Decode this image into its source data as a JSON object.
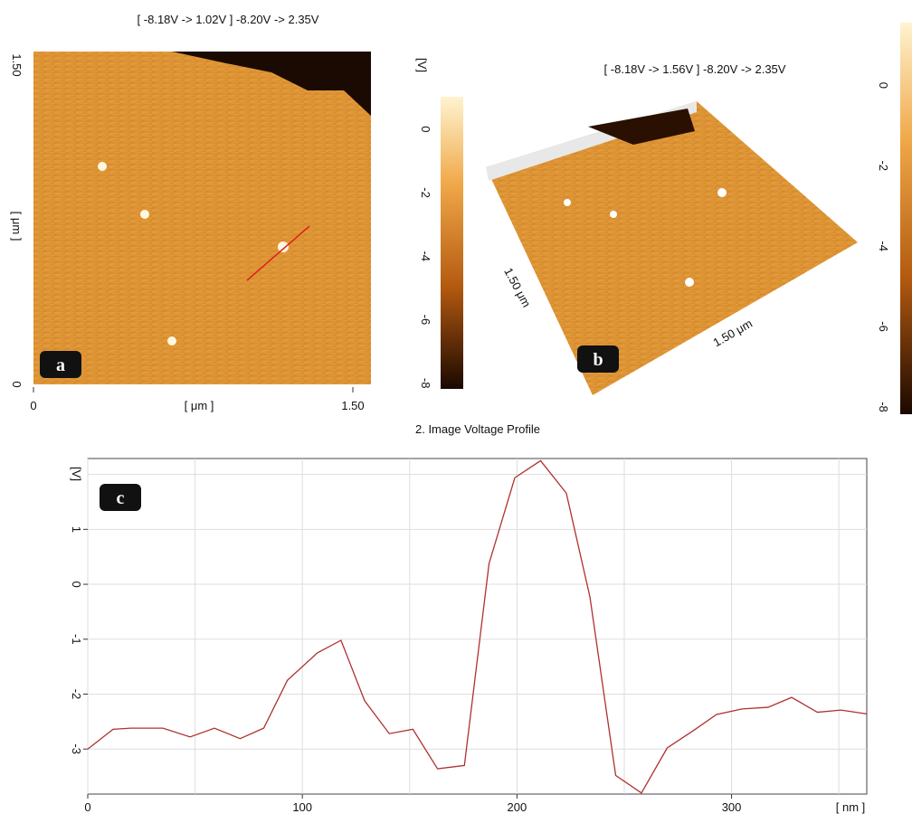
{
  "panel_a": {
    "label": "a",
    "title": "[ -8.18V  -> 1.02V ] -8.20V  -> 2.35V",
    "x_label": "[ μm ]",
    "y_label": "[ μm ]",
    "lim": [
      0,
      1.5
    ],
    "ticks": [
      0,
      {
        "value": 1.5,
        "label": "1.50"
      }
    ]
  },
  "colorbar_1": {
    "unit": "[V]",
    "lim": [
      -8.18,
      1.02
    ],
    "ticks": [
      0,
      -2,
      -4,
      -6,
      -8
    ]
  },
  "panel_b": {
    "label": "b",
    "title": "[ -8.18V  -> 1.56V ] -8.20V  -> 2.35V",
    "side_labels": [
      "1.50 μm",
      "1.50 μm"
    ]
  },
  "colorbar_2": {
    "lim": [
      -8.18,
      1.56
    ],
    "ticks": [
      0,
      -2,
      -4,
      -6,
      -8
    ]
  },
  "chart_data": {
    "type": "line",
    "title": "2. Image Voltage Profile",
    "label": "c",
    "x_label": "[ nm ]",
    "y_label": "[V]",
    "color": "#b03030",
    "x": [
      0,
      11.8,
      20,
      35,
      47.7,
      59,
      71,
      82,
      93,
      107,
      118,
      129,
      140.5,
      151.5,
      163,
      175.5,
      187,
      199,
      211,
      223,
      234,
      246,
      258,
      270,
      282,
      293,
      305,
      317,
      328,
      340,
      351,
      363
    ],
    "values": [
      -3.0,
      -2.64,
      -2.62,
      -2.62,
      -2.78,
      -2.62,
      -2.81,
      -2.62,
      -1.75,
      -1.25,
      -1.02,
      -2.12,
      -2.72,
      -2.64,
      -3.36,
      -3.3,
      0.38,
      1.94,
      2.25,
      1.66,
      -0.23,
      -3.48,
      -3.8,
      -2.98,
      -2.67,
      -2.37,
      -2.27,
      -2.24,
      -2.06,
      -2.33,
      -2.29,
      -2.36
    ],
    "xlim": [
      0,
      363
    ],
    "ylim": [
      -3.82,
      2.29
    ],
    "xticks": [
      0,
      100,
      200,
      300
    ],
    "yticks": [
      -3,
      -2,
      -1,
      0,
      1
    ],
    "xgrid": [
      0,
      50,
      100,
      150,
      200,
      250,
      300,
      350
    ],
    "ygrid": [
      -3,
      -2,
      -1,
      0,
      1,
      2
    ]
  }
}
